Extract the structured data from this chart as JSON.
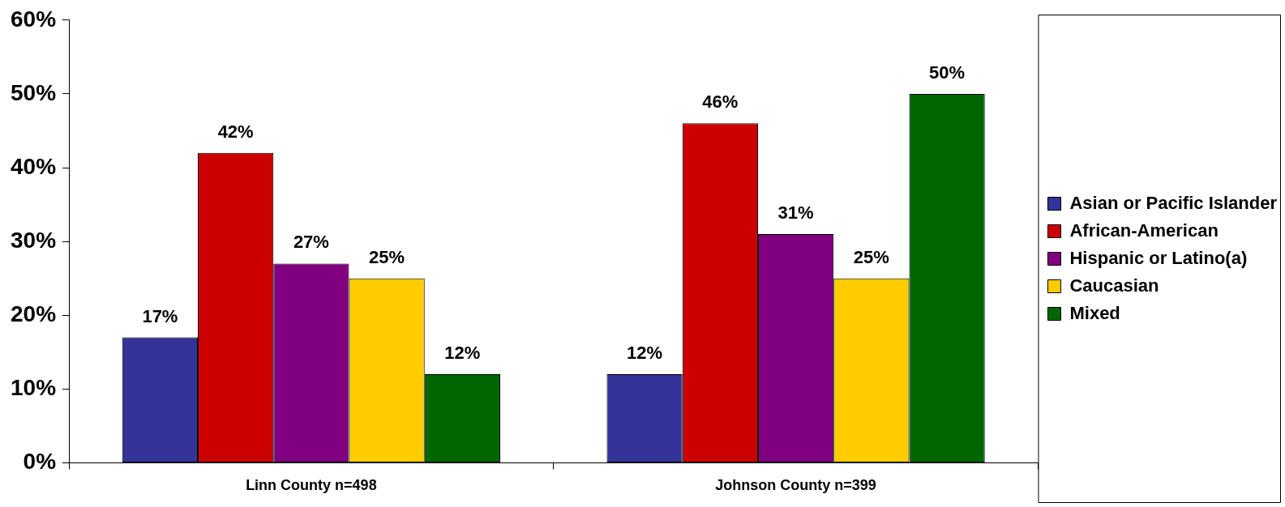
{
  "chart_data": {
    "type": "bar",
    "categories": [
      "Linn County n=498",
      "Johnson County n=399"
    ],
    "series": [
      {
        "name": "Asian or Pacific Islander",
        "color": "#333399",
        "values": [
          17,
          12
        ],
        "value_labels": [
          "17%",
          "12%"
        ]
      },
      {
        "name": "African-American",
        "color": "#cc0000",
        "values": [
          42,
          46
        ],
        "value_labels": [
          "42%",
          "46%"
        ]
      },
      {
        "name": "Hispanic or Latino(a)",
        "color": "#800080",
        "values": [
          27,
          31
        ],
        "value_labels": [
          "27%",
          "31%"
        ]
      },
      {
        "name": "Caucasian",
        "color": "#ffcc00",
        "values": [
          25,
          25
        ],
        "value_labels": [
          "25%",
          "25%"
        ]
      },
      {
        "name": "Mixed",
        "color": "#006600",
        "values": [
          12,
          50
        ],
        "value_labels": [
          "12%",
          "50%"
        ]
      }
    ],
    "ylim": [
      0,
      60
    ],
    "yticks": [
      {
        "value": 0,
        "label": "0%"
      },
      {
        "value": 10,
        "label": "10%"
      },
      {
        "value": 20,
        "label": "20%"
      },
      {
        "value": 30,
        "label": "30%"
      },
      {
        "value": 40,
        "label": "40%"
      },
      {
        "value": 50,
        "label": "50%"
      },
      {
        "value": 60,
        "label": "60%"
      }
    ],
    "grid": false,
    "legend": "right"
  }
}
